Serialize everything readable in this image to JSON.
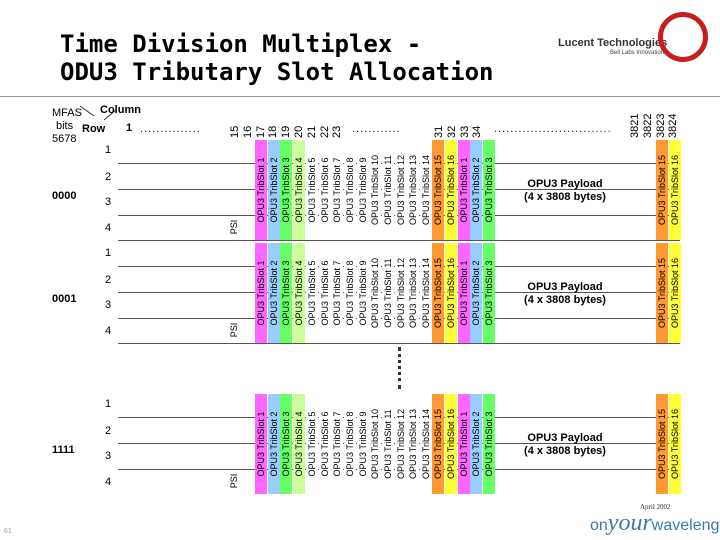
{
  "header": {
    "title_line1": "Time Division Multiplex -",
    "title_line2": "ODU3 Tributary Slot Allocation"
  },
  "logo": {
    "name": "Lucent Technologies",
    "tagline": "Bell Labs Innovations"
  },
  "labels": {
    "mfas": "MFAS",
    "bits": "bits",
    "bits_range": "5678",
    "column": "Column",
    "row": "Row",
    "col_start": "1",
    "psi": "PSI"
  },
  "column_numbers": {
    "group1": [
      "15",
      "16",
      "17",
      "18",
      "19",
      "20",
      "21",
      "22",
      "23"
    ],
    "group2": [
      "31",
      "32",
      "33",
      "34"
    ],
    "group3": [
      "3821",
      "3822",
      "3823",
      "3824"
    ]
  },
  "row_numbers": [
    "1",
    "2",
    "3",
    "4"
  ],
  "blocks": [
    {
      "mfas": "0000",
      "payload_line1": "OPU3 Payload",
      "payload_line2": "(4 x  3808 bytes)",
      "rows": [
        "1",
        "2",
        "3",
        "4"
      ]
    },
    {
      "mfas": "0001",
      "payload_line1": "OPU3 Payload",
      "payload_line2": "(4 x  3808 bytes)",
      "rows": [
        "1",
        "2",
        "3",
        "4"
      ]
    },
    {
      "mfas": "1111",
      "payload_line1": "OPU3 Payload",
      "payload_line2": "(4 x  3808 bytes)",
      "rows": [
        "1",
        "2",
        "3",
        "4"
      ]
    }
  ],
  "slots": [
    {
      "label": "OPU3 TribSlot 1",
      "color": "#ff66ff"
    },
    {
      "label": "OPU3 TribSlot 2",
      "color": "#99ccff"
    },
    {
      "label": "OPU3 TribSlot 3",
      "color": "#66ff66"
    },
    {
      "label": "OPU3 TribSlot 4",
      "color": "#ccff99"
    },
    {
      "label": "OPU3 TribSlot 5",
      "color": "#ffffff"
    },
    {
      "label": "OPU3 TribSlot 6",
      "color": "#ffffff"
    },
    {
      "label": "OPU3 TribSlot 7",
      "color": "#ffffff"
    },
    {
      "label": "OPU3 TribSlot 8",
      "color": "#ffffff"
    },
    {
      "label": "OPU3 TribSlot 9",
      "color": "#ffffff"
    },
    {
      "label": "OPU3 TribSlot 10",
      "color": "#ffffff"
    },
    {
      "label": "OPU3 TribSlot 11",
      "color": "#ffffff"
    },
    {
      "label": "OPU3 TribSlot 12",
      "color": "#ffffff"
    },
    {
      "label": "OPU3 TribSlot 13",
      "color": "#ffffff"
    },
    {
      "label": "OPU3 TribSlot 14",
      "color": "#ffffff"
    },
    {
      "label": "OPU3 TribSlot 15",
      "color": "#ff9933"
    },
    {
      "label": "OPU3 TribSlot 16",
      "color": "#ffff33"
    },
    {
      "label": "OPU3 TribSlot 1",
      "color": "#ff66ff"
    },
    {
      "label": "OPU3 TribSlot 2",
      "color": "#99ccff"
    },
    {
      "label": "OPU3 TribSlot 3",
      "color": "#66ff66"
    },
    {
      "label": "OPU3 TribSlot 15",
      "color": "#ff9933"
    },
    {
      "label": "OPU3 TribSlot 16",
      "color": "#ffff33"
    }
  ],
  "footer": {
    "date": "April 2002",
    "page": "61",
    "brand_on": "on",
    "brand_your": "your",
    "brand_wavelength": "wavelength"
  }
}
